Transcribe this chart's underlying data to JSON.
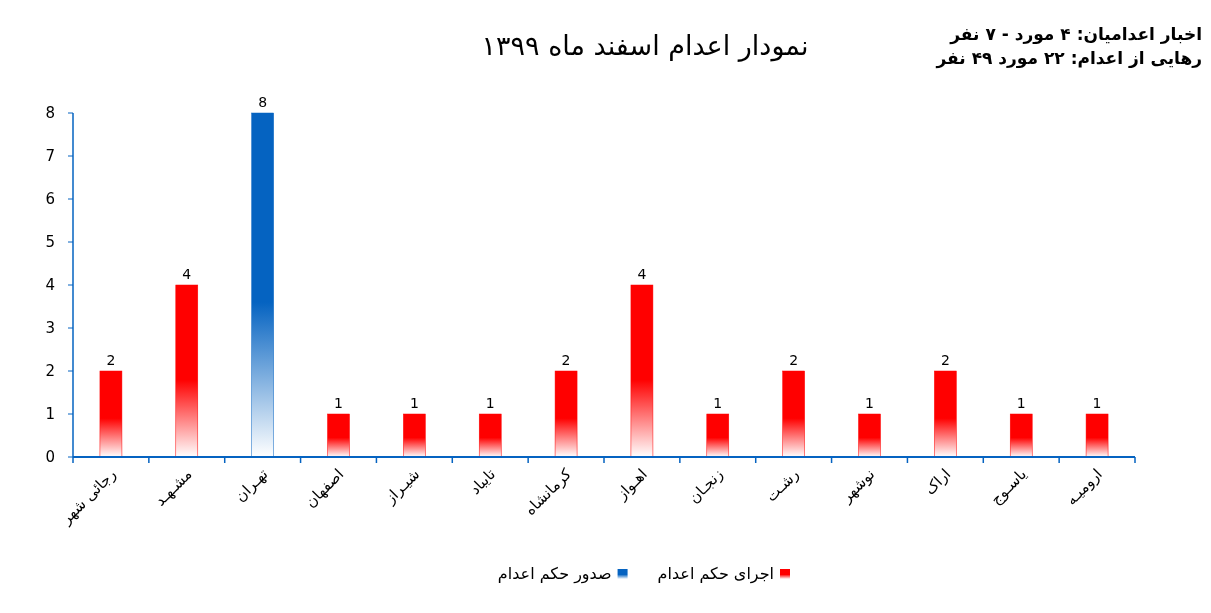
{
  "chart_data": {
    "type": "bar",
    "title": "نمودار اعدام اسفند ماه ۱۳۹۹",
    "annotations": [
      "اخبار اعدامیان: ۴ مورد - ۷ نفر",
      "رهایی از اعدام: ۲۲ مورد ۴۹ نفر"
    ],
    "categories": [
      "رجائی شهر",
      "مشـهـد",
      "تهـران",
      "اصفهان",
      "شیـراز",
      "تایباد",
      "کرمانشاه",
      "اهـواز",
      "زنجـان",
      "رشـت",
      "نوشهر",
      "اراک",
      "یاسـوج",
      "ارومیـه"
    ],
    "stacked": true,
    "series": [
      {
        "name": "اجرای حکم اعدام",
        "color": "#ff0000",
        "values": [
          2,
          4,
          null,
          1,
          1,
          1,
          2,
          4,
          1,
          2,
          1,
          2,
          1,
          1
        ]
      },
      {
        "name": "صدور حکم اعدام",
        "color": "#0563c1",
        "values": [
          null,
          null,
          8,
          null,
          null,
          null,
          null,
          null,
          null,
          null,
          null,
          null,
          null,
          null
        ]
      }
    ],
    "ylim": [
      0,
      8
    ],
    "yticks": [
      0,
      1,
      2,
      3,
      4,
      5,
      6,
      7,
      8
    ],
    "grid": false,
    "legend": "bottom",
    "data_labels": true
  }
}
